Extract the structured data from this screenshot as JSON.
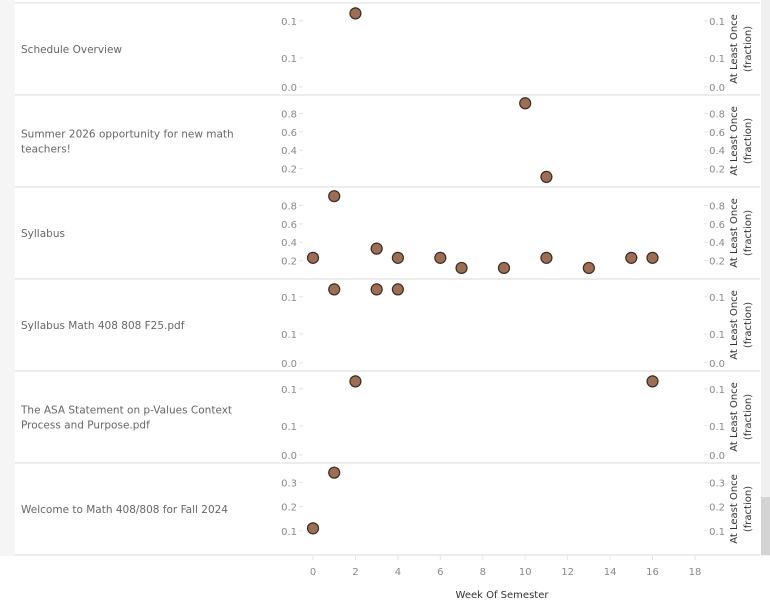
{
  "chart_data": {
    "type": "scatter",
    "xlabel": "Week Of Semester",
    "right_axis_title": [
      "At Least Once",
      "(fraction)"
    ],
    "xlim": [
      -1,
      18.5
    ],
    "xticks": [
      0,
      2,
      4,
      6,
      8,
      10,
      12,
      14,
      16,
      18
    ],
    "marker_color": "#9c6f55",
    "marker_stroke": "#3a2a20",
    "grid": false,
    "panels": [
      {
        "label": [
          "Schedule Overview"
        ],
        "ylim": [
          0,
          0.124
        ],
        "ticks": [
          {
            "v": 0.1,
            "t": "0.1"
          },
          {
            "v": 0.05,
            "t": "0.1"
          },
          {
            "v": 0.011,
            "t": "0.0"
          }
        ],
        "points": [
          [
            2,
            0.11
          ]
        ]
      },
      {
        "label": [
          "Summer 2026 opportunity for new math",
          "teachers!"
        ],
        "ylim": [
          0,
          1.0
        ],
        "ticks": [
          {
            "v": 0.8,
            "t": "0.8"
          },
          {
            "v": 0.6,
            "t": "0.6"
          },
          {
            "v": 0.4,
            "t": "0.4"
          },
          {
            "v": 0.2,
            "t": "0.2"
          }
        ],
        "points": [
          [
            10,
            0.91
          ],
          [
            11,
            0.11
          ]
        ]
      },
      {
        "label": [
          "Syllabus"
        ],
        "ylim": [
          0,
          1.0
        ],
        "ticks": [
          {
            "v": 0.8,
            "t": "0.8"
          },
          {
            "v": 0.6,
            "t": "0.6"
          },
          {
            "v": 0.4,
            "t": "0.4"
          },
          {
            "v": 0.2,
            "t": "0.2"
          }
        ],
        "points": [
          [
            0,
            0.23
          ],
          [
            1,
            0.9
          ],
          [
            3,
            0.33
          ],
          [
            4,
            0.23
          ],
          [
            6,
            0.23
          ],
          [
            7,
            0.12
          ],
          [
            9,
            0.12
          ],
          [
            11,
            0.23
          ],
          [
            13,
            0.12
          ],
          [
            15,
            0.23
          ],
          [
            16,
            0.23
          ]
        ]
      },
      {
        "label": [
          "Syllabus Math 408 808 F25.pdf"
        ],
        "ylim": [
          0,
          0.124
        ],
        "ticks": [
          {
            "v": 0.1,
            "t": "0.1"
          },
          {
            "v": 0.05,
            "t": "0.1"
          },
          {
            "v": 0.011,
            "t": "0.0"
          }
        ],
        "points": [
          [
            1,
            0.11
          ],
          [
            3,
            0.11
          ],
          [
            4,
            0.11
          ]
        ]
      },
      {
        "label": [
          "The ASA Statement on p-Values  Context",
          "Process  and Purpose.pdf"
        ],
        "ylim": [
          0,
          0.124
        ],
        "ticks": [
          {
            "v": 0.1,
            "t": "0.1"
          },
          {
            "v": 0.05,
            "t": "0.1"
          },
          {
            "v": 0.011,
            "t": "0.0"
          }
        ],
        "points": [
          [
            2,
            0.11
          ],
          [
            16,
            0.11
          ]
        ]
      },
      {
        "label": [
          "Welcome to Math 408/808 for Fall 2024"
        ],
        "ylim": [
          0,
          0.38
        ],
        "ticks": [
          {
            "v": 0.3,
            "t": "0.3"
          },
          {
            "v": 0.2,
            "t": "0.2"
          },
          {
            "v": 0.1,
            "t": "0.1"
          }
        ],
        "points": [
          [
            0,
            0.11
          ],
          [
            1,
            0.34
          ]
        ]
      }
    ]
  }
}
